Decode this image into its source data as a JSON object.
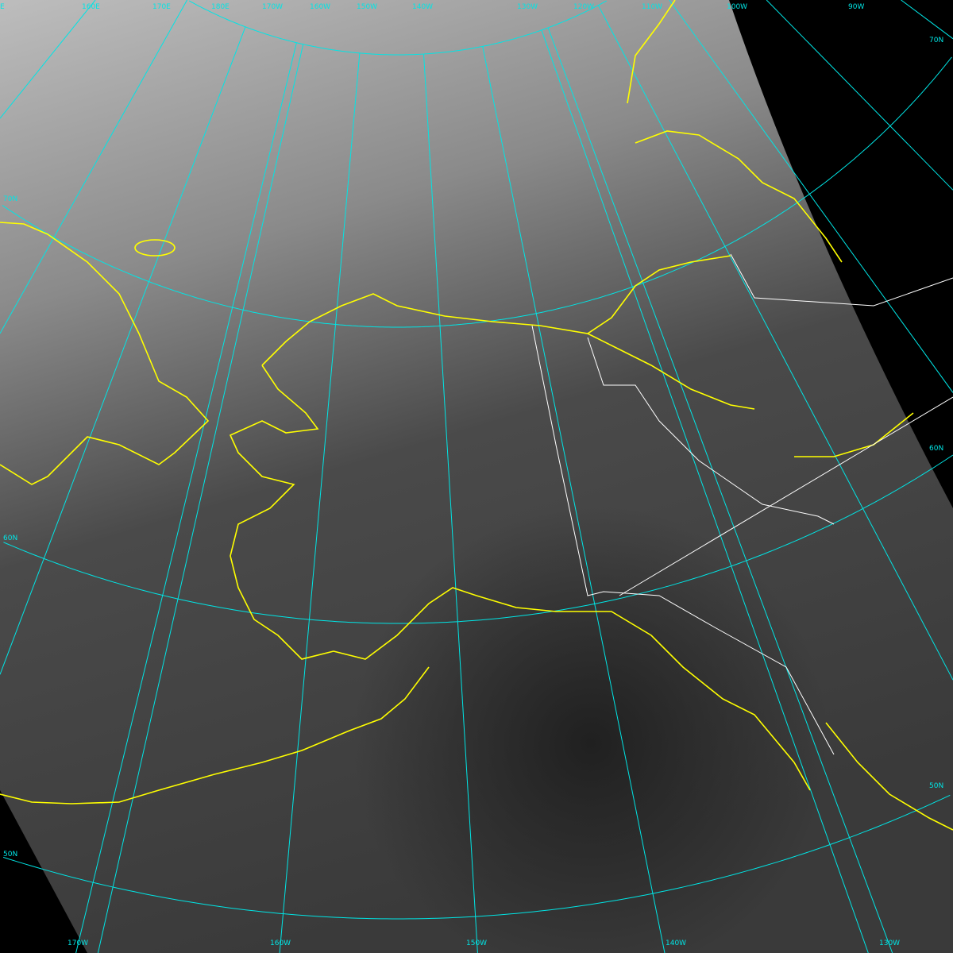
{
  "grid_labels": {
    "top": [
      "E",
      "160E",
      "170E",
      "180E",
      "170W",
      "160W",
      "150W",
      "140W",
      "130W",
      "120W",
      "110W",
      "100W",
      "90W"
    ],
    "left": [
      "70N",
      "60N",
      "50N"
    ],
    "right": [
      "70N",
      "60N",
      "50N"
    ],
    "bottom": [
      "170W",
      "160W",
      "150W",
      "140W",
      "130W"
    ]
  },
  "colors": {
    "grid": "#00e5e5",
    "coastline": "#ffff00",
    "borders": "#ffffff",
    "background": "#000000"
  }
}
